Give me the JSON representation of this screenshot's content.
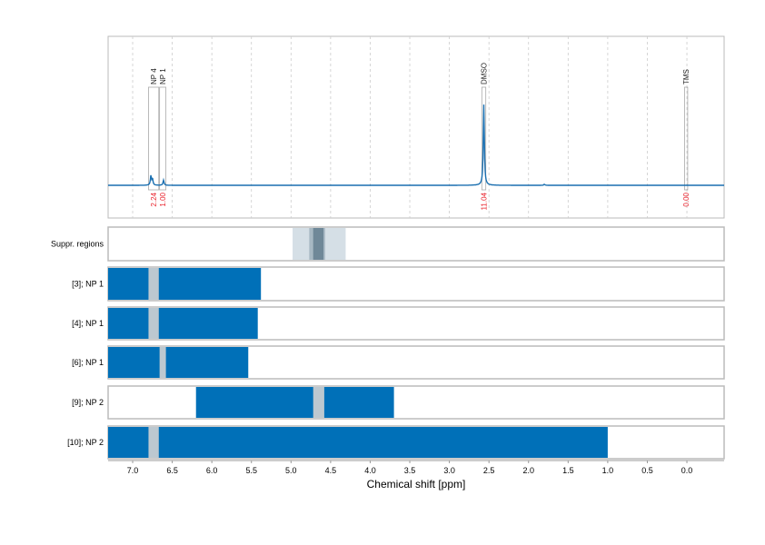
{
  "chart_data": {
    "type": "line",
    "xlabel": "Chemical shift [ppm]",
    "ylabel": "",
    "xlim": [
      7.31,
      -0.47
    ],
    "x_reversed": true,
    "grid": "vertical dashed",
    "ticks": [
      "7.0",
      "6.5",
      "6.0",
      "5.5",
      "5.0",
      "4.5",
      "4.0",
      "3.5",
      "3.0",
      "2.5",
      "2.0",
      "1.5",
      "1.0",
      "0.5",
      "0.0"
    ],
    "colors": {
      "spectrum": "#1a6fb0",
      "bar": "#0070b8",
      "gap": "#bcc8d0",
      "integral": "#e8202a",
      "suppr_light": "#d5dfe6",
      "suppr_mid": "#a7b8c3",
      "suppr_dark": "#6f8898"
    },
    "spectrum": {
      "peaks": [
        {
          "ppm": 6.77,
          "height": 0.09
        },
        {
          "ppm": 6.75,
          "height": 0.06
        },
        {
          "ppm": 6.61,
          "height": 0.05
        },
        {
          "ppm": 2.565,
          "height": 0.78
        },
        {
          "ppm": 1.8,
          "height": 0.01
        }
      ]
    },
    "annotations": [
      {
        "label": "NP 4",
        "range": [
          6.8,
          6.67
        ],
        "integral": "2.24"
      },
      {
        "label": "NP 1",
        "range": [
          6.66,
          6.58
        ],
        "integral": "1.00"
      },
      {
        "label": "DMSO",
        "range": [
          2.59,
          2.54
        ],
        "integral": "11.04"
      },
      {
        "label": "TMS",
        "range": [
          0.03,
          -0.01
        ],
        "integral": "0.00"
      }
    ],
    "suppression": {
      "label": "Suppr. regions",
      "light": [
        4.98,
        4.31
      ],
      "mid": [
        4.77,
        4.57
      ],
      "dark": [
        4.72,
        4.59
      ]
    },
    "rows": [
      {
        "label": "[3]; NP 1",
        "range": [
          7.31,
          5.38
        ],
        "gap": [
          6.8,
          6.67
        ]
      },
      {
        "label": "[4]; NP 1",
        "range": [
          7.31,
          5.42
        ],
        "gap": [
          6.8,
          6.67
        ]
      },
      {
        "label": "[6]; NP 1",
        "range": [
          7.31,
          5.54
        ],
        "gap": [
          6.66,
          6.58
        ]
      },
      {
        "label": "[9]; NP 2",
        "range": [
          6.2,
          3.7
        ],
        "gap": [
          4.72,
          4.58
        ]
      },
      {
        "label": "[10]; NP 2",
        "range": [
          7.31,
          1.0
        ],
        "gap": [
          6.8,
          6.67
        ]
      }
    ]
  }
}
